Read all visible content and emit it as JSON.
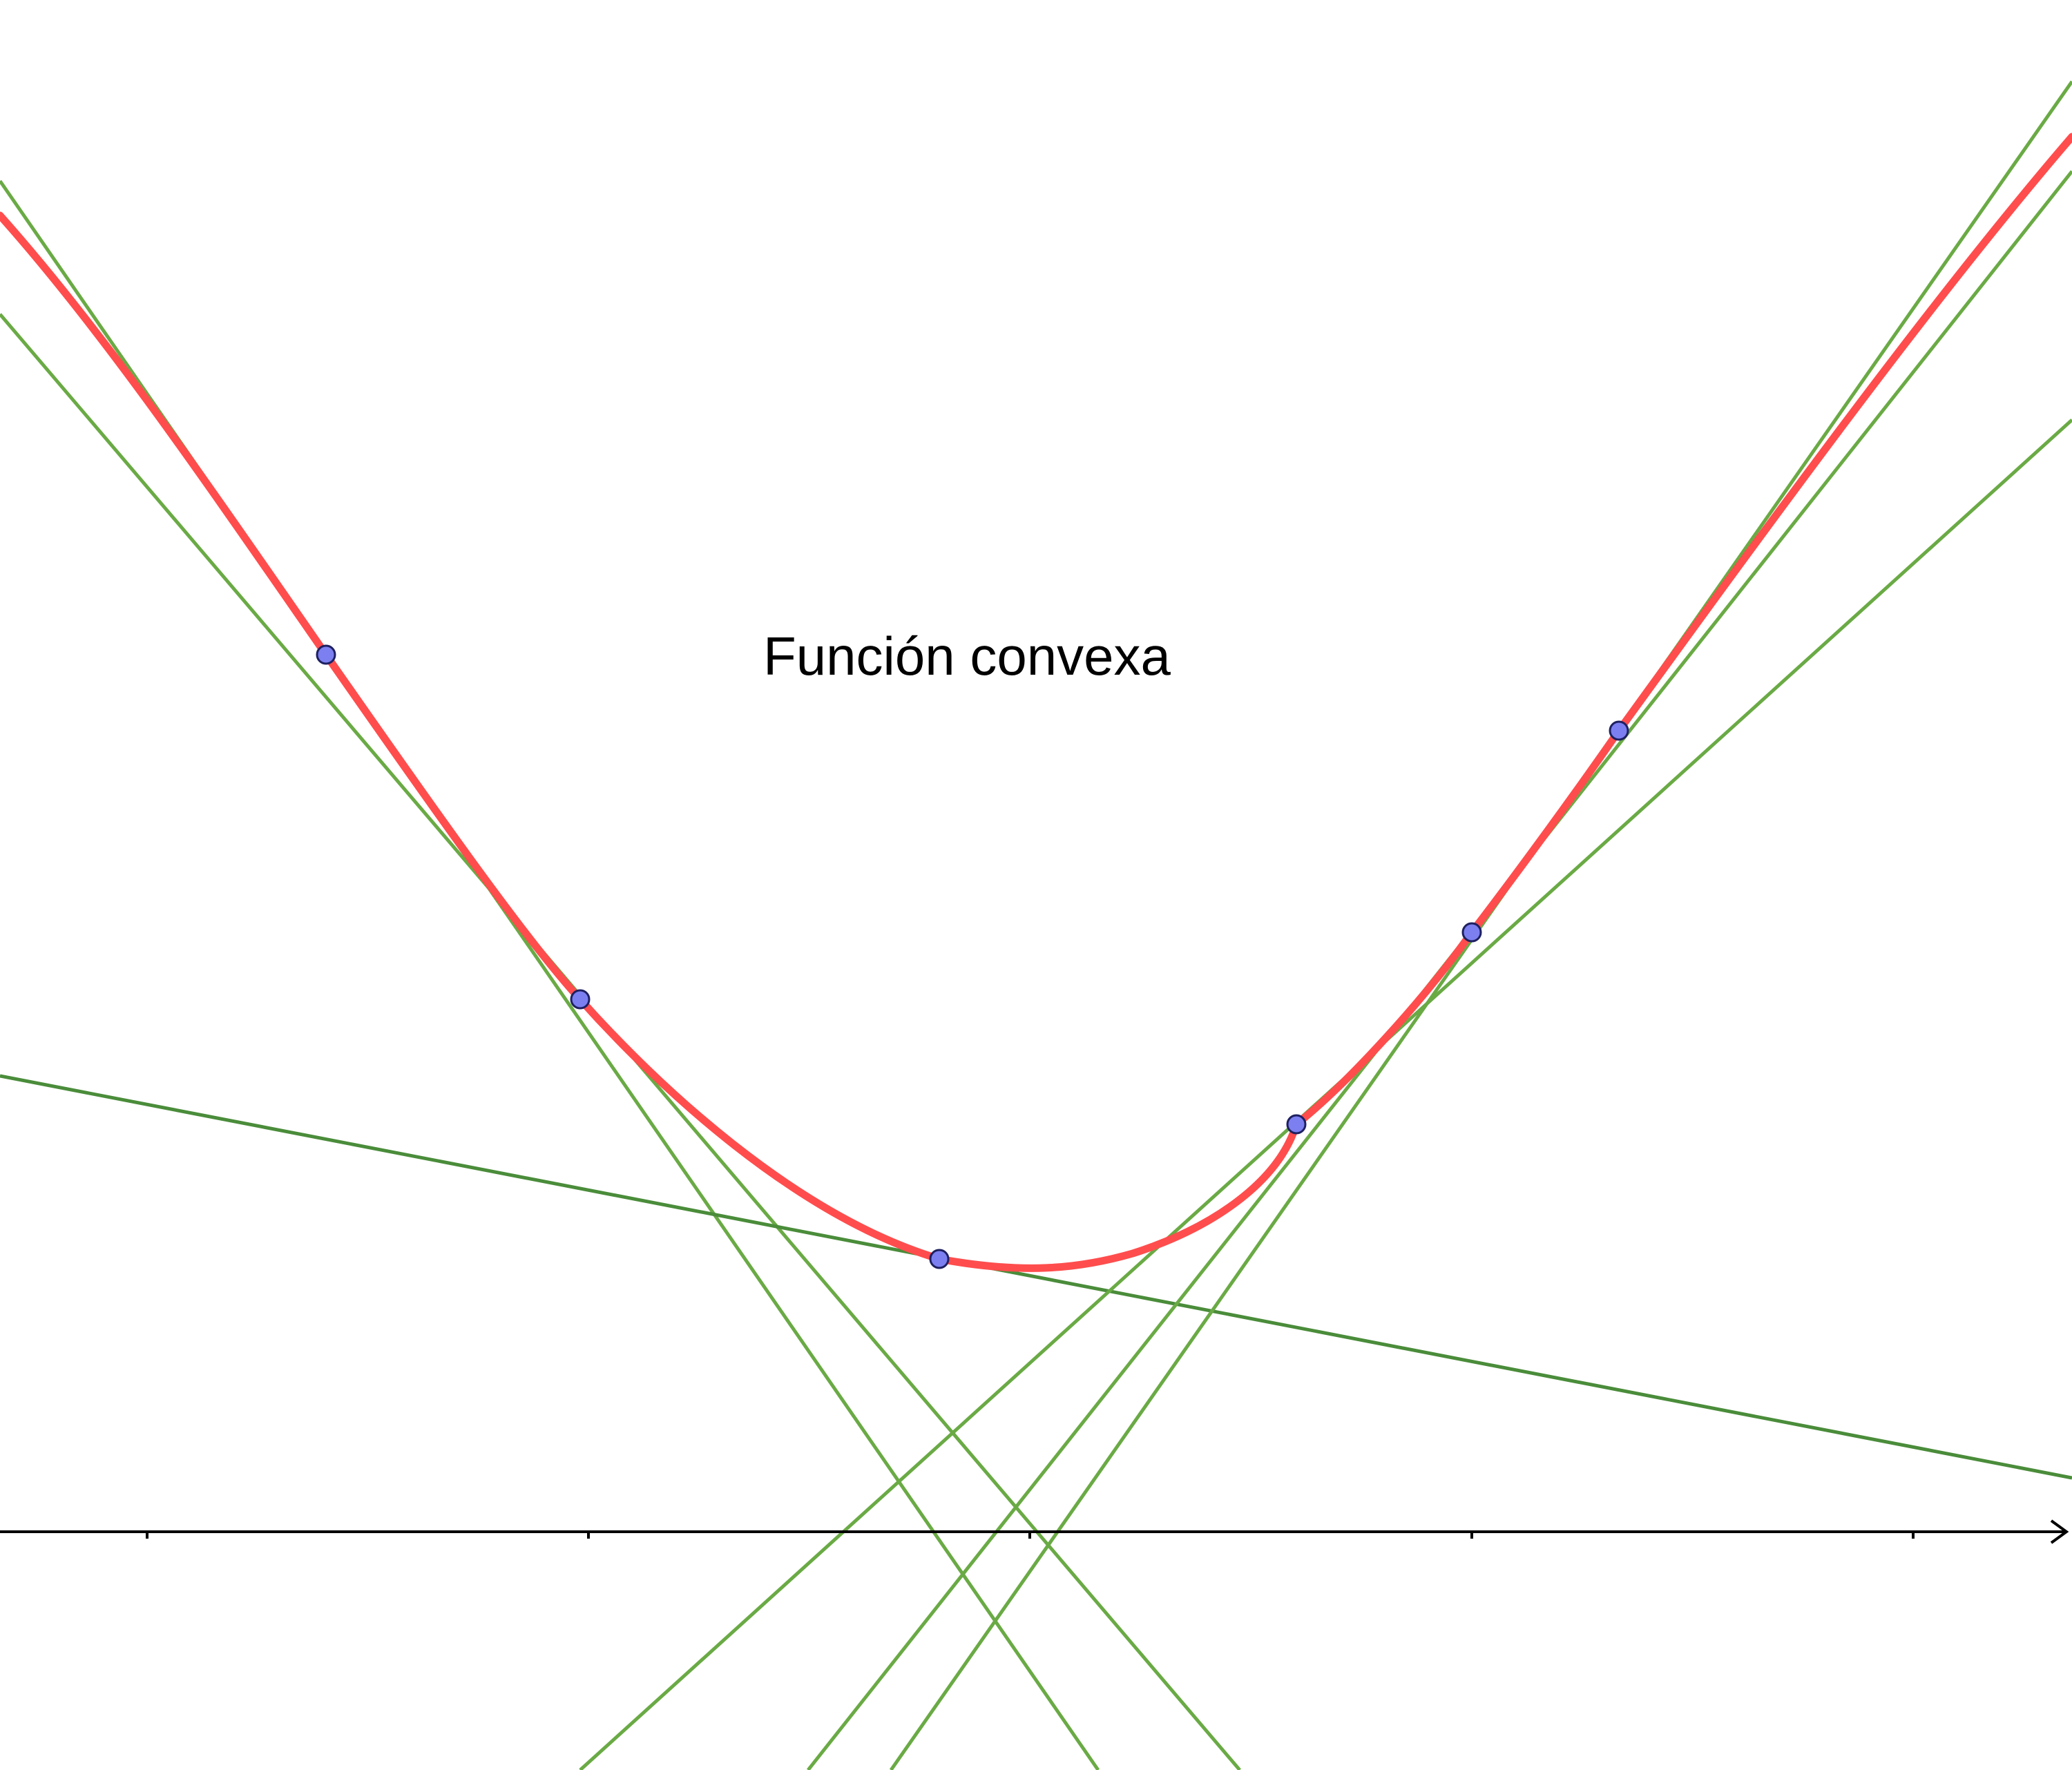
{
  "title": "Función convexa",
  "colors": {
    "curve": "#ff4d4d",
    "tangent_light": "#6aaa45",
    "tangent_dark": "#4a8c3a",
    "point_fill": "#7b7ff0",
    "point_stroke": "#1e2060",
    "axis": "#000000",
    "background": "#ffffff"
  },
  "curve": {
    "type": "convex-function"
  },
  "tangent_points": [
    {
      "id": "p1"
    },
    {
      "id": "p2"
    },
    {
      "id": "p3"
    },
    {
      "id": "p4"
    },
    {
      "id": "p5"
    },
    {
      "id": "p6"
    }
  ]
}
